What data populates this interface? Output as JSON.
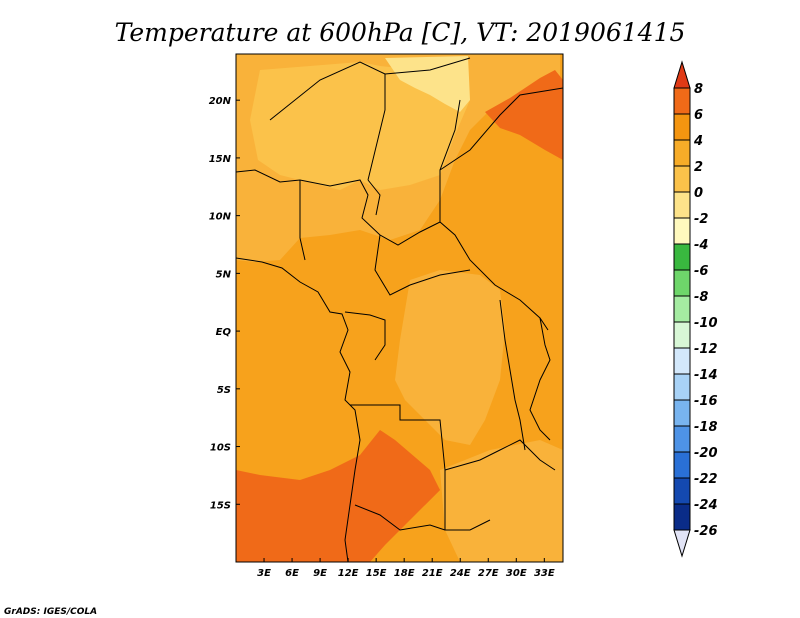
{
  "chart_data": {
    "type": "heatmap",
    "title": "Temperature at 600hPa [C], VT: 2019061415",
    "x_ticks": [
      "3E",
      "6E",
      "9E",
      "12E",
      "15E",
      "18E",
      "21E",
      "24E",
      "27E",
      "30E",
      "33E"
    ],
    "y_ticks": [
      "20N",
      "15N",
      "10N",
      "5N",
      "EQ",
      "5S",
      "10S",
      "15S"
    ],
    "x_range_deg": [
      0,
      35
    ],
    "y_range_deg": [
      -20,
      24
    ],
    "colorbar": {
      "levels": [
        "8",
        "6",
        "4",
        "2",
        "0",
        "-2",
        "-4",
        "-6",
        "-8",
        "-10",
        "-12",
        "-14",
        "-16",
        "-18",
        "-20",
        "-22",
        "-24",
        "-26"
      ],
      "colors": [
        "#e03a16",
        "#f06a18",
        "#f49510",
        "#f7ac28",
        "#fbc24a",
        "#fde38a",
        "#fff9be",
        "#39b83f",
        "#6ed66a",
        "#a5eca2",
        "#d8f7d6",
        "#d3e8fb",
        "#a8d2f6",
        "#78b4ef",
        "#4e93e6",
        "#2a70d6",
        "#1449b0",
        "#0a2c88",
        "#0a1560",
        "#e2e4f6"
      ]
    },
    "background_color": "#f7a21c",
    "credit": "GrADS: IGES/COLA"
  }
}
